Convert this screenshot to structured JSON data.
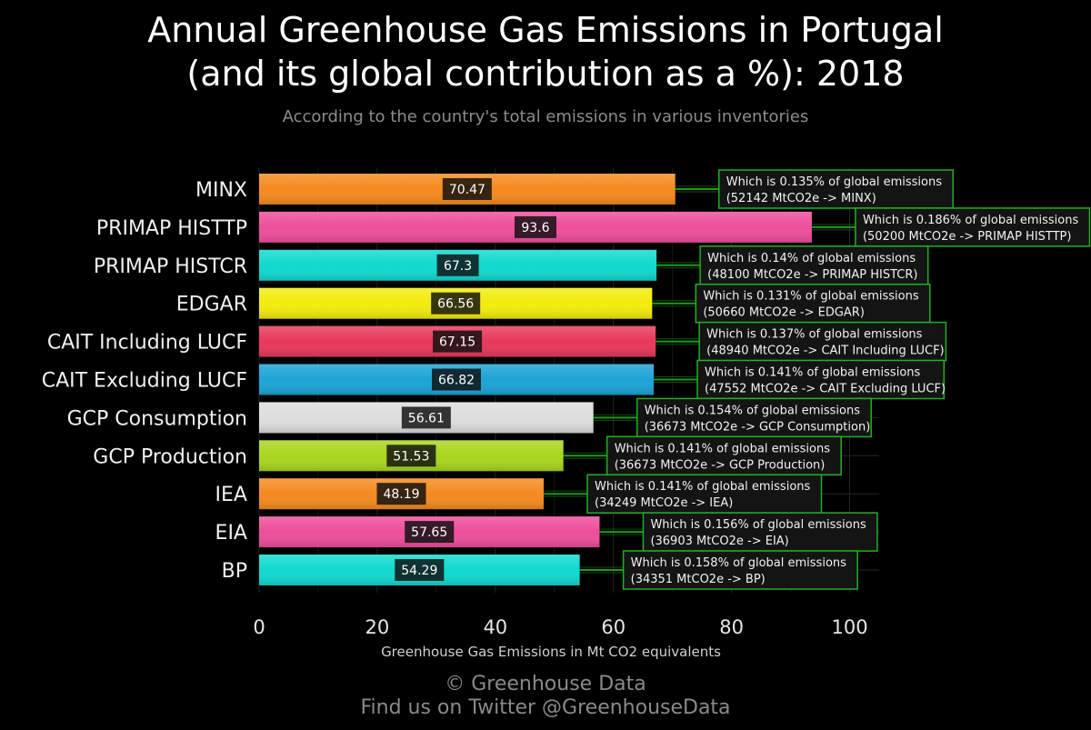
{
  "title_line1": "Annual Greenhouse Gas Emissions in Portugal",
  "title_line2": "(and its global contribution as a %): 2018",
  "subtitle": "According to the country's total emissions in various inventories",
  "footer_line1": "© Greenhouse Data",
  "footer_line2": "Find us on Twitter @GreenhouseData",
  "chart_data": {
    "type": "bar",
    "orientation": "horizontal",
    "xlabel": "Greenhouse Gas Emissions in Mt CO2 equivalents",
    "xlim": [
      0,
      105
    ],
    "xticks": [
      0,
      20,
      40,
      60,
      80,
      100
    ],
    "grid": true,
    "categories": [
      "MINX",
      "PRIMAP HISTTP",
      "PRIMAP HISTCR",
      "EDGAR",
      "CAIT Including LUCF",
      "CAIT Excluding LUCF",
      "GCP Consumption",
      "GCP Production",
      "IEA",
      "EIA",
      "BP"
    ],
    "values": [
      70.47,
      93.6,
      67.3,
      66.56,
      67.15,
      66.82,
      56.61,
      51.53,
      48.19,
      57.65,
      54.29
    ],
    "value_labels": [
      "70.47",
      "93.6",
      "67.3",
      "66.56",
      "67.15",
      "66.82",
      "56.61",
      "51.53",
      "48.19",
      "57.65",
      "54.29"
    ],
    "colors": [
      "#f58a1f",
      "#ee4d9b",
      "#0fd9cf",
      "#f2ec0c",
      "#e8385a",
      "#1ba4d6",
      "#dddddd",
      "#a8d61e",
      "#f58a1f",
      "#ee4d9b",
      "#0fd9cf"
    ],
    "annotations": [
      {
        "line1": "Which is 0.135% of global emissions",
        "line2": "(52142 MtCO2e -> MINX)"
      },
      {
        "line1": "Which is 0.186% of global emissions",
        "line2": "(50200 MtCO2e -> PRIMAP HISTTP)"
      },
      {
        "line1": "Which is 0.14% of global emissions",
        "line2": "(48100 MtCO2e -> PRIMAP HISTCR)"
      },
      {
        "line1": "Which is 0.131% of global emissions",
        "line2": "(50660 MtCO2e -> EDGAR)"
      },
      {
        "line1": "Which is 0.137% of global emissions",
        "line2": "(48940 MtCO2e -> CAIT Including LUCF)"
      },
      {
        "line1": "Which is 0.141% of global emissions",
        "line2": "(47552 MtCO2e -> CAIT Excluding LUCF)"
      },
      {
        "line1": "Which is 0.154% of global emissions",
        "line2": "(36673 MtCO2e -> GCP Consumption)"
      },
      {
        "line1": "Which is 0.141% of global emissions",
        "line2": "(36673 MtCO2e -> GCP Production)"
      },
      {
        "line1": "Which is 0.141% of global emissions",
        "line2": "(34249 MtCO2e -> IEA)"
      },
      {
        "line1": "Which is 0.156% of global emissions",
        "line2": "(36903 MtCO2e -> EIA)"
      },
      {
        "line1": "Which is 0.158% of global emissions",
        "line2": "(34351 MtCO2e -> BP)"
      }
    ],
    "annotation_border_color": "#22b022",
    "connector_color": "#1fa81f"
  }
}
